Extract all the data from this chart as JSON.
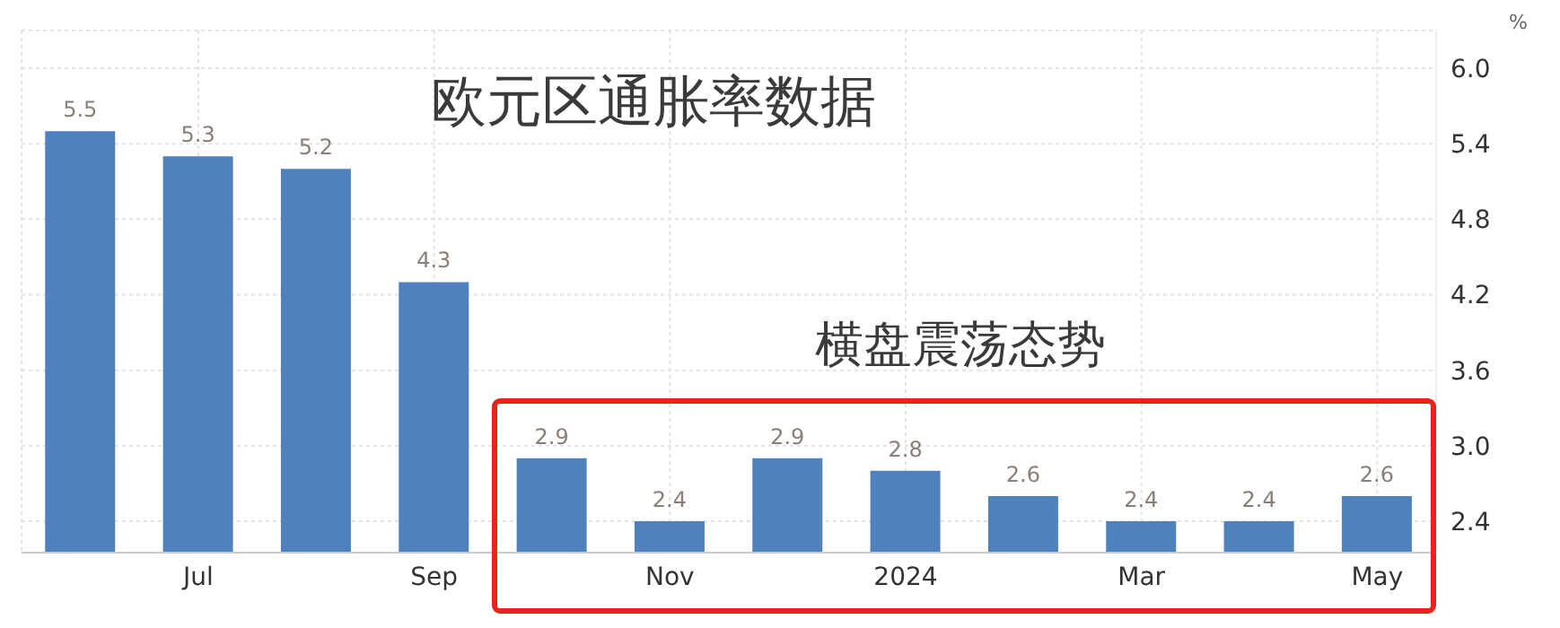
{
  "chart_data": {
    "type": "bar",
    "ylabel": "%",
    "annotations": [
      "欧元区通胀率数据",
      "横盘震荡态势"
    ],
    "categories": [
      null,
      "Jul",
      null,
      "Sep",
      null,
      "Nov",
      null,
      "2024",
      null,
      "Mar",
      null,
      "May"
    ],
    "values": [
      5.5,
      5.3,
      5.2,
      4.3,
      2.9,
      2.4,
      2.9,
      2.8,
      2.6,
      2.4,
      2.4,
      2.6
    ],
    "color": "#4f81bd",
    "ylim": [
      2.15,
      6.3
    ],
    "yticks": [
      2.4,
      {
        "value": 3,
        "label": "3.0"
      },
      3.6,
      4.2,
      4.8,
      5.4,
      {
        "value": 6,
        "label": "6.0"
      }
    ],
    "grid": true,
    "data_labels": true
  }
}
